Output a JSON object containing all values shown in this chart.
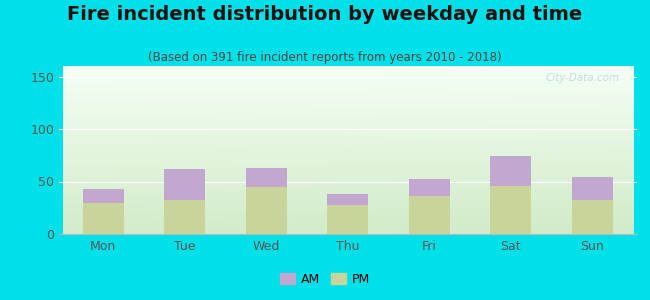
{
  "title": "Fire incident distribution by weekday and time",
  "subtitle": "(Based on 391 fire incident reports from years 2010 - 2018)",
  "categories": [
    "Mon",
    "Tue",
    "Wed",
    "Thu",
    "Fri",
    "Sat",
    "Sun"
  ],
  "pm_values": [
    30,
    32,
    45,
    28,
    36,
    46,
    32
  ],
  "am_values": [
    13,
    30,
    18,
    10,
    16,
    28,
    22
  ],
  "am_color": "#c2a8d0",
  "pm_color": "#c8d49a",
  "ylim": [
    0,
    160
  ],
  "yticks": [
    0,
    50,
    100,
    150
  ],
  "outer_bg": "#00e0e8",
  "chart_bg_topleft": "#d8eed8",
  "chart_bg_topright": "#f8fff8",
  "chart_bg_bottom": "#e8f5e0",
  "watermark": "City-Data.com",
  "legend_am": "AM",
  "legend_pm": "PM",
  "title_fontsize": 14,
  "subtitle_fontsize": 8.5,
  "tick_fontsize": 9,
  "legend_fontsize": 9
}
